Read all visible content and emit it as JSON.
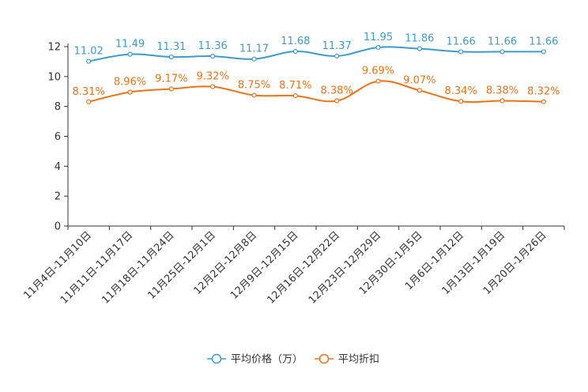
{
  "chart_data": {
    "type": "line",
    "title": "",
    "xlabel": "",
    "ylabel": "",
    "ylim": [
      0,
      12
    ],
    "yticks": [
      0,
      2,
      4,
      6,
      8,
      10,
      12
    ],
    "grid": false,
    "legend_position": "bottom-center",
    "categories": [
      "11月4日-11月10日",
      "11月11日-11月17日",
      "11月18日-11月24日",
      "11月25日-12月1日",
      "12月2日-12月8日",
      "12月9日-12月15日",
      "12月16日-12月22日",
      "12月23日-12月29日",
      "12月30日-1月5日",
      "1月6日-1月12日",
      "1月13日-1月19日",
      "1月20日-1月26日"
    ],
    "series": [
      {
        "name": "平均价格（万）",
        "color": "#3d9ccc",
        "values": [
          11.02,
          11.49,
          11.31,
          11.36,
          11.17,
          11.68,
          11.37,
          11.95,
          11.86,
          11.66,
          11.66,
          11.66
        ],
        "labels": [
          "11.02",
          "11.49",
          "11.31",
          "11.36",
          "11.17",
          "11.68",
          "11.37",
          "11.95",
          "11.86",
          "11.66",
          "11.66",
          "11.66"
        ]
      },
      {
        "name": "平均折扣",
        "color": "#ee7216",
        "values": [
          8.31,
          8.96,
          9.17,
          9.32,
          8.75,
          8.71,
          8.38,
          9.69,
          9.07,
          8.34,
          8.38,
          8.32
        ],
        "labels": [
          "8.31%",
          "8.96%",
          "9.17%",
          "9.32%",
          "8.75%",
          "8.71%",
          "8.38%",
          "9.69%",
          "9.07%",
          "8.34%",
          "8.38%",
          "8.32%"
        ]
      }
    ]
  }
}
